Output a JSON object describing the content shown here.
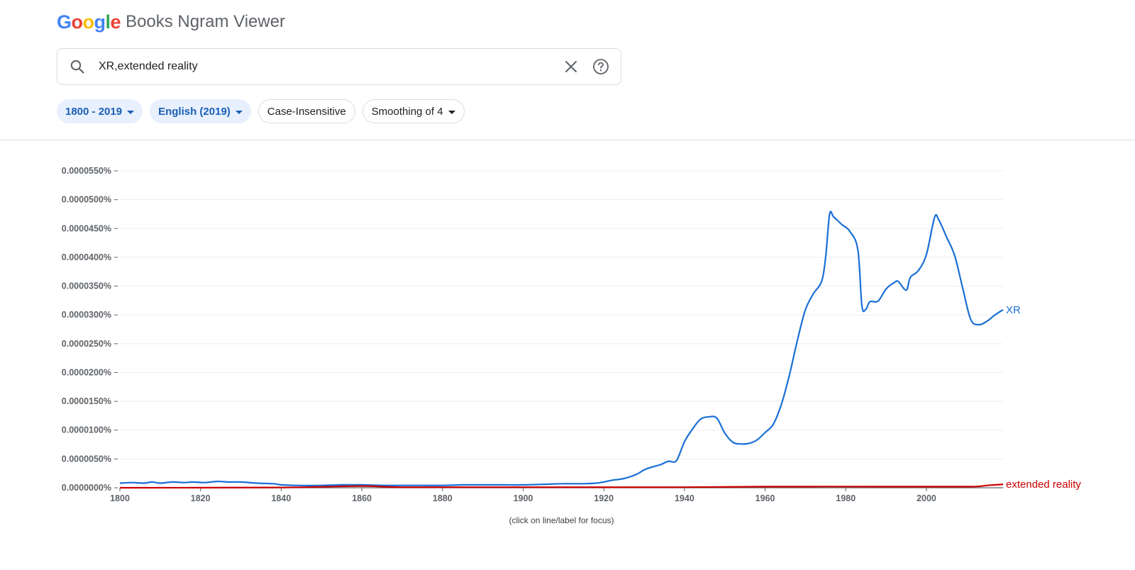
{
  "header": {
    "logo_letters": [
      {
        "ch": "G",
        "color": "#4285F4"
      },
      {
        "ch": "o",
        "color": "#EA4335"
      },
      {
        "ch": "o",
        "color": "#FBBC05"
      },
      {
        "ch": "g",
        "color": "#4285F4"
      },
      {
        "ch": "l",
        "color": "#34A853"
      },
      {
        "ch": "e",
        "color": "#EA4335"
      }
    ],
    "logo_text": "Google",
    "suffix": "Books Ngram Viewer"
  },
  "search": {
    "value": "XR,extended reality",
    "search_icon": "search-icon",
    "clear_icon": "close-icon",
    "help_icon": "help-icon"
  },
  "filters": {
    "year_range": "1800 - 2019",
    "corpus": "English (2019)",
    "case": "Case-Insensitive",
    "smoothing": "Smoothing of 4"
  },
  "colors": {
    "accent": "#1a5fb4",
    "xr": "#1a6fd6",
    "extended_reality": "#cc0000"
  },
  "chart_data": {
    "type": "line",
    "xlim": [
      1800,
      2019
    ],
    "ylim": [
      0,
      5.5e-08
    ],
    "x_ticks": [
      "1800",
      "1820",
      "1840",
      "1860",
      "1880",
      "1900",
      "1920",
      "1940",
      "1960",
      "1980",
      "2000"
    ],
    "y_ticks": [
      "0.0000000%",
      "0.0000050%",
      "0.0000100%",
      "0.0000150%",
      "0.0000200%",
      "0.0000250%",
      "0.0000300%",
      "0.0000350%",
      "0.0000400%",
      "0.0000450%",
      "0.0000500%",
      "0.0000550%"
    ],
    "grid": true,
    "note": "(click on line/label for focus)",
    "series": [
      {
        "name": "XR",
        "color": "#1a6fd6",
        "points": [
          [
            1800,
            0.8
          ],
          [
            1803,
            0.9
          ],
          [
            1806,
            0.8
          ],
          [
            1808,
            1.0
          ],
          [
            1810,
            0.8
          ],
          [
            1813,
            1.0
          ],
          [
            1816,
            0.9
          ],
          [
            1818,
            1.0
          ],
          [
            1821,
            0.9
          ],
          [
            1824,
            1.1
          ],
          [
            1827,
            1.0
          ],
          [
            1830,
            1.0
          ],
          [
            1834,
            0.8
          ],
          [
            1838,
            0.7
          ],
          [
            1840,
            0.5
          ],
          [
            1844,
            0.4
          ],
          [
            1850,
            0.4
          ],
          [
            1855,
            0.5
          ],
          [
            1860,
            0.5
          ],
          [
            1865,
            0.4
          ],
          [
            1870,
            0.4
          ],
          [
            1875,
            0.4
          ],
          [
            1880,
            0.4
          ],
          [
            1885,
            0.5
          ],
          [
            1890,
            0.5
          ],
          [
            1895,
            0.5
          ],
          [
            1900,
            0.5
          ],
          [
            1905,
            0.6
          ],
          [
            1910,
            0.7
          ],
          [
            1915,
            0.7
          ],
          [
            1918,
            0.8
          ],
          [
            1920,
            1.0
          ],
          [
            1922,
            1.3
          ],
          [
            1925,
            1.6
          ],
          [
            1928,
            2.3
          ],
          [
            1930,
            3.1
          ],
          [
            1932,
            3.6
          ],
          [
            1934,
            4.0
          ],
          [
            1936,
            4.6
          ],
          [
            1938,
            4.7
          ],
          [
            1940,
            8.0
          ],
          [
            1942,
            10.2
          ],
          [
            1944,
            11.9
          ],
          [
            1946,
            12.3
          ],
          [
            1948,
            12.1
          ],
          [
            1950,
            9.5
          ],
          [
            1952,
            7.9
          ],
          [
            1954,
            7.6
          ],
          [
            1956,
            7.7
          ],
          [
            1958,
            8.3
          ],
          [
            1960,
            9.6
          ],
          [
            1962,
            11.0
          ],
          [
            1964,
            14.4
          ],
          [
            1966,
            19.5
          ],
          [
            1968,
            25.6
          ],
          [
            1970,
            30.9
          ],
          [
            1972,
            33.7
          ],
          [
            1974,
            35.8
          ],
          [
            1975,
            40.0
          ],
          [
            1976,
            47.5
          ],
          [
            1977,
            47.0
          ],
          [
            1979,
            45.7
          ],
          [
            1981,
            44.5
          ],
          [
            1983,
            41.3
          ],
          [
            1984,
            31.6
          ],
          [
            1985,
            31.0
          ],
          [
            1986,
            32.3
          ],
          [
            1988,
            32.4
          ],
          [
            1990,
            34.5
          ],
          [
            1992,
            35.6
          ],
          [
            1993,
            35.8
          ],
          [
            1995,
            34.3
          ],
          [
            1996,
            36.5
          ],
          [
            1998,
            37.7
          ],
          [
            2000,
            40.5
          ],
          [
            2002,
            46.9
          ],
          [
            2003,
            46.6
          ],
          [
            2005,
            43.5
          ],
          [
            2007,
            40.3
          ],
          [
            2009,
            34.6
          ],
          [
            2011,
            29.2
          ],
          [
            2013,
            28.3
          ],
          [
            2015,
            28.9
          ],
          [
            2017,
            30.0
          ],
          [
            2019,
            30.9
          ]
        ]
      },
      {
        "name": "extended reality",
        "color": "#cc0000",
        "points": [
          [
            1800,
            0.0
          ],
          [
            1840,
            0.05
          ],
          [
            1860,
            0.3
          ],
          [
            1870,
            0.1
          ],
          [
            1900,
            0.1
          ],
          [
            1940,
            0.1
          ],
          [
            1960,
            0.2
          ],
          [
            1990,
            0.2
          ],
          [
            2010,
            0.2
          ],
          [
            2013,
            0.25
          ],
          [
            2015,
            0.4
          ],
          [
            2017,
            0.5
          ],
          [
            2019,
            0.6
          ]
        ]
      }
    ],
    "y_unit": "value × 1e-9 (percent scale shown in ticks)"
  }
}
